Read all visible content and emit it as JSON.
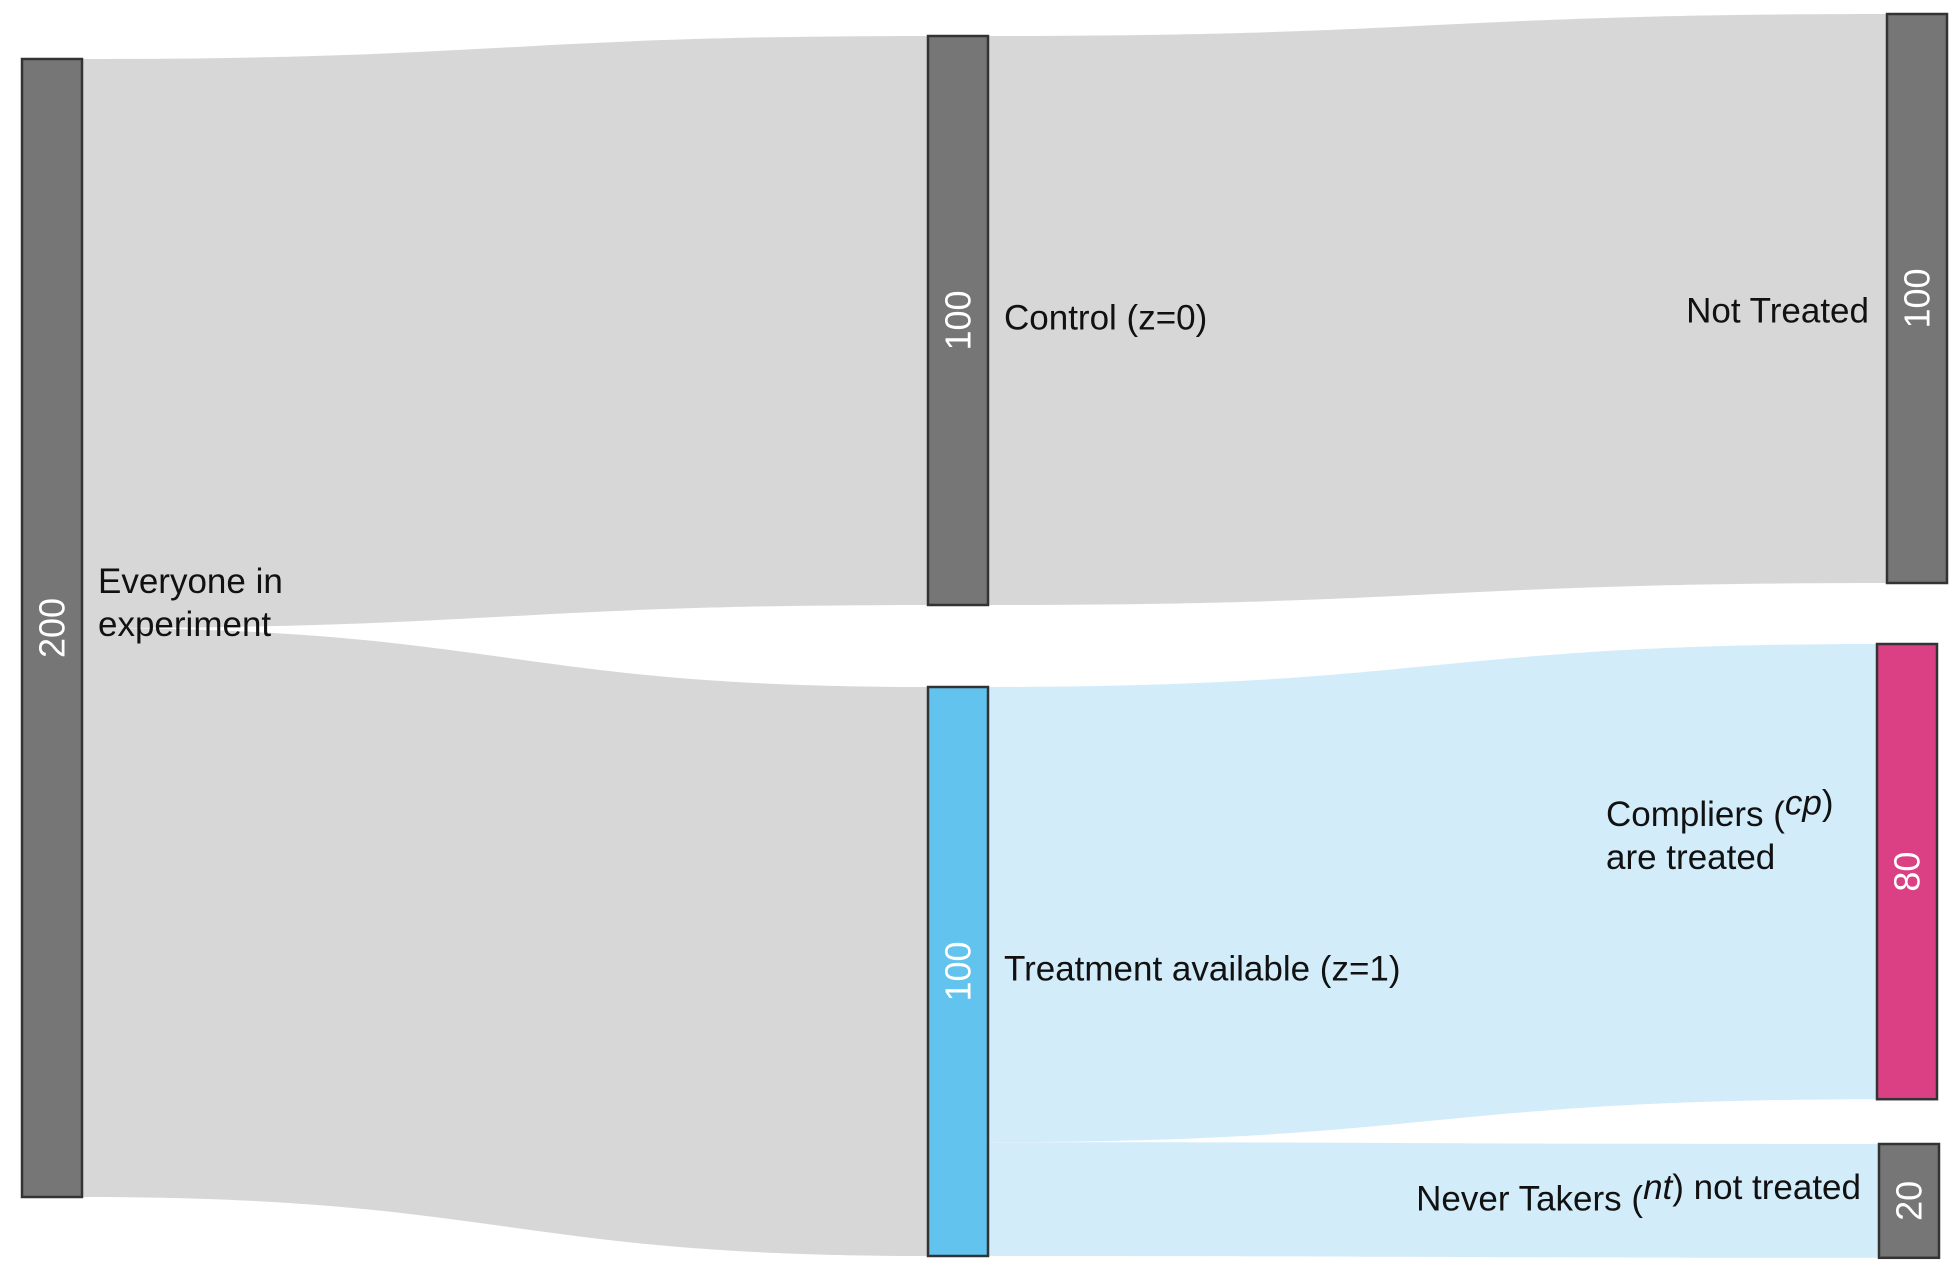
{
  "chart_data": {
    "type": "sankey",
    "colors": {
      "grey_node": "#767676",
      "blue_node": "#63C3EF",
      "pink_node": "#DB4085",
      "grey_link": "#D7D7D7",
      "blue_link": "#D3ECFA"
    },
    "nodes": [
      {
        "id": "everyone",
        "value": 200,
        "value_label": "200",
        "color": "#767676",
        "label_lines": [
          [
            {
              "text": "Everyone in"
            }
          ],
          [
            {
              "text": "experiment"
            }
          ]
        ]
      },
      {
        "id": "control",
        "value": 100,
        "value_label": "100",
        "color": "#767676",
        "label_lines": [
          [
            {
              "text": "Control (z=0)"
            }
          ]
        ]
      },
      {
        "id": "treatment",
        "value": 100,
        "value_label": "100",
        "color": "#63C3EF",
        "label_lines": [
          [
            {
              "text": "Treatment available (z=1)"
            }
          ]
        ]
      },
      {
        "id": "not_treated",
        "value": 100,
        "value_label": "100",
        "color": "#767676",
        "label_lines": [
          [
            {
              "text": "Not Treated"
            }
          ]
        ]
      },
      {
        "id": "compliers",
        "value": 80,
        "value_label": "80",
        "color": "#DB4085",
        "label_lines": [
          [
            {
              "text": "Compliers ("
            },
            {
              "text": "cp",
              "italic": true
            },
            {
              "text": ")"
            }
          ],
          [
            {
              "text": "are treated"
            }
          ]
        ]
      },
      {
        "id": "never_takers",
        "value": 20,
        "value_label": "20",
        "color": "#767676",
        "label_lines": [
          [
            {
              "text": "Never Takers ("
            },
            {
              "text": "nt",
              "italic": true
            },
            {
              "text": ") not treated"
            }
          ]
        ]
      }
    ],
    "links": [
      {
        "source": "everyone",
        "target": "control",
        "value": 100,
        "color": "#D7D7D7"
      },
      {
        "source": "everyone",
        "target": "treatment",
        "value": 100,
        "color": "#D7D7D7"
      },
      {
        "source": "control",
        "target": "not_treated",
        "value": 100,
        "color": "#D7D7D7"
      },
      {
        "source": "treatment",
        "target": "compliers",
        "value": 80,
        "color": "#D3ECFA"
      },
      {
        "source": "treatment",
        "target": "never_takers",
        "value": 20,
        "color": "#D3ECFA"
      }
    ]
  }
}
